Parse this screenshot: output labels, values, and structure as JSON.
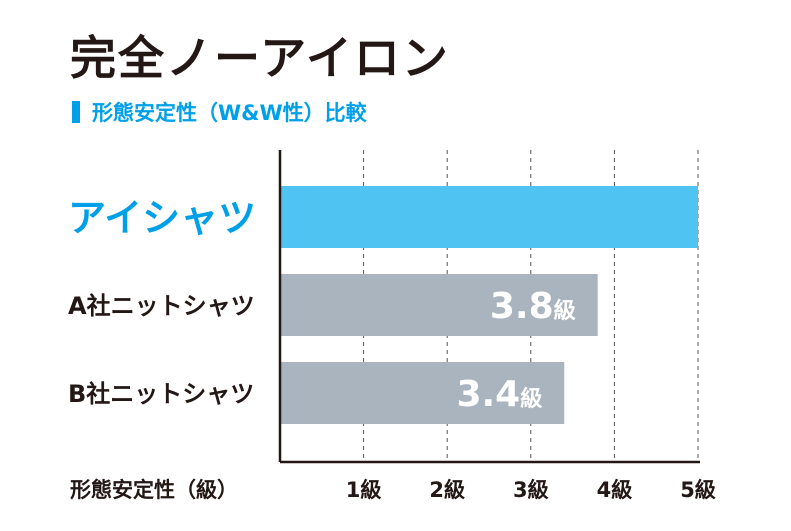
{
  "title": "完全ノーアイロン",
  "chart_data": {
    "type": "bar",
    "orientation": "horizontal",
    "title": "完全ノーアイロン",
    "subtitle": "形態安定性（W&W性）比較",
    "xlabel": "形態安定性（級）",
    "categories": [
      "アイシャツ",
      "A社ニットシャツ",
      "B社ニットシャツ"
    ],
    "values": [
      5.0,
      3.8,
      3.4
    ],
    "value_labels": [
      "",
      "3.8",
      "3.4"
    ],
    "value_unit": "級",
    "xlim": [
      0,
      5
    ],
    "xticks": [
      1,
      2,
      3,
      4,
      5
    ],
    "tick_labels": [
      "1級",
      "2級",
      "3級",
      "4級",
      "5級"
    ],
    "grid": true,
    "colors": {
      "highlight_bar": "#4fc3f2",
      "bar": "#a9b4be",
      "highlight_text": "#00a0e9",
      "text": "#231815"
    },
    "highlight_index": 0
  }
}
